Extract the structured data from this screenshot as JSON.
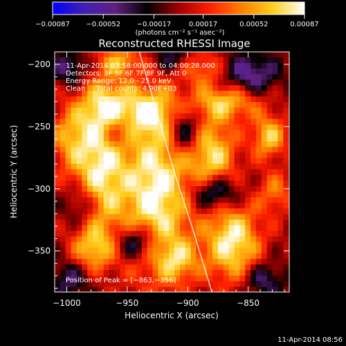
{
  "chart_data": {
    "type": "heatmap",
    "title": "Reconstructed RHESSI Image",
    "xlabel": "Heliocentric X (arcsec)",
    "ylabel": "Heliocentric Y (arcsec)",
    "xlim": [
      -1010,
      -816
    ],
    "ylim": [
      -383,
      -190
    ],
    "x_ticks": [
      -1000,
      -950,
      -900,
      -850
    ],
    "x_tick_labels": [
      "−1000",
      "−950",
      "−900",
      "−850"
    ],
    "y_ticks": [
      -200,
      -250,
      -300,
      -350
    ],
    "y_tick_labels": [
      "−200",
      "−250",
      "−300",
      "−350"
    ],
    "colorbar": {
      "range": [
        -0.00087,
        0.00087
      ],
      "ticks": [
        -0.00087,
        -0.00052,
        -0.00017,
        0.00017,
        0.00052,
        0.00087
      ],
      "tick_labels": [
        "−0.00087",
        "−0.00052",
        "−0.00017",
        "0.00017",
        "0.00052",
        "0.00087"
      ],
      "label": "(photons cm⁻² s⁻¹ asec⁻²)",
      "colormap": [
        "#0000ff",
        "#4020b0",
        "#602080",
        "#000000",
        "#a00000",
        "#ff2000",
        "#ff8000",
        "#ffd020",
        "#ffffff"
      ]
    },
    "info_lines": [
      "11-Apr-2014 03:58:00.000 to 04:00:28.000",
      "Detectors: 3F 5F 6F 7F 8F 9F, Att 0",
      "Energy Range: 12.0 - 25.0 keV",
      "Clean     Total counts: 4.90E+03"
    ],
    "peak_label": "Position of Peak = [−863,−356]",
    "peak_position": [
      -863,
      -356
    ],
    "limb_curve": [
      [
        -940,
        -190
      ],
      [
        -925,
        -240
      ],
      [
        -910,
        -290
      ],
      [
        -895,
        -335
      ],
      [
        -880,
        -383
      ]
    ],
    "sources": [
      {
        "x": -975,
        "y": -285,
        "a": 0.9,
        "sx": 16,
        "sy": 40
      },
      {
        "x": -970,
        "y": -235,
        "a": 0.55,
        "sx": 14,
        "sy": 14
      },
      {
        "x": -928,
        "y": -305,
        "a": 1.0,
        "sx": 20,
        "sy": 45
      },
      {
        "x": -935,
        "y": -240,
        "a": 0.7,
        "sx": 18,
        "sy": 14
      },
      {
        "x": -882,
        "y": -275,
        "a": 0.8,
        "sx": 14,
        "sy": 22
      },
      {
        "x": -870,
        "y": -232,
        "a": 0.7,
        "sx": 20,
        "sy": 10
      },
      {
        "x": -865,
        "y": -345,
        "a": 0.95,
        "sx": 16,
        "sy": 22
      },
      {
        "x": -835,
        "y": -260,
        "a": 0.75,
        "sx": 10,
        "sy": 12
      },
      {
        "x": -980,
        "y": -350,
        "a": 0.6,
        "sx": 12,
        "sy": 12
      },
      {
        "x": -1000,
        "y": -260,
        "a": 0.5,
        "sx": 12,
        "sy": 18
      },
      {
        "x": -958,
        "y": -200,
        "a": 0.6,
        "sx": 12,
        "sy": 8
      },
      {
        "x": -890,
        "y": -205,
        "a": 0.45,
        "sx": 12,
        "sy": 10
      },
      {
        "x": -910,
        "y": -360,
        "a": 0.55,
        "sx": 12,
        "sy": 12
      },
      {
        "x": -830,
        "y": -305,
        "a": 0.45,
        "sx": 10,
        "sy": 12
      },
      {
        "x": -945,
        "y": -345,
        "a": -0.75,
        "sx": 12,
        "sy": 10
      },
      {
        "x": -880,
        "y": -305,
        "a": -0.8,
        "sx": 14,
        "sy": 10
      },
      {
        "x": -905,
        "y": -255,
        "a": -0.7,
        "sx": 10,
        "sy": 14
      },
      {
        "x": -960,
        "y": -255,
        "a": -0.45,
        "sx": 10,
        "sy": 10
      },
      {
        "x": -850,
        "y": -210,
        "a": -0.6,
        "sx": 16,
        "sy": 12
      },
      {
        "x": -990,
        "y": -315,
        "a": -0.5,
        "sx": 10,
        "sy": 12
      },
      {
        "x": -1000,
        "y": -205,
        "a": -0.5,
        "sx": 10,
        "sy": 10
      },
      {
        "x": -840,
        "y": -375,
        "a": -0.5,
        "sx": 12,
        "sy": 10
      },
      {
        "x": -915,
        "y": -195,
        "a": -0.4,
        "sx": 10,
        "sy": 8
      },
      {
        "x": -1000,
        "y": -375,
        "a": -0.45,
        "sx": 12,
        "sy": 10
      }
    ]
  },
  "footer_timestamp": "11-Apr-2014 08:56"
}
